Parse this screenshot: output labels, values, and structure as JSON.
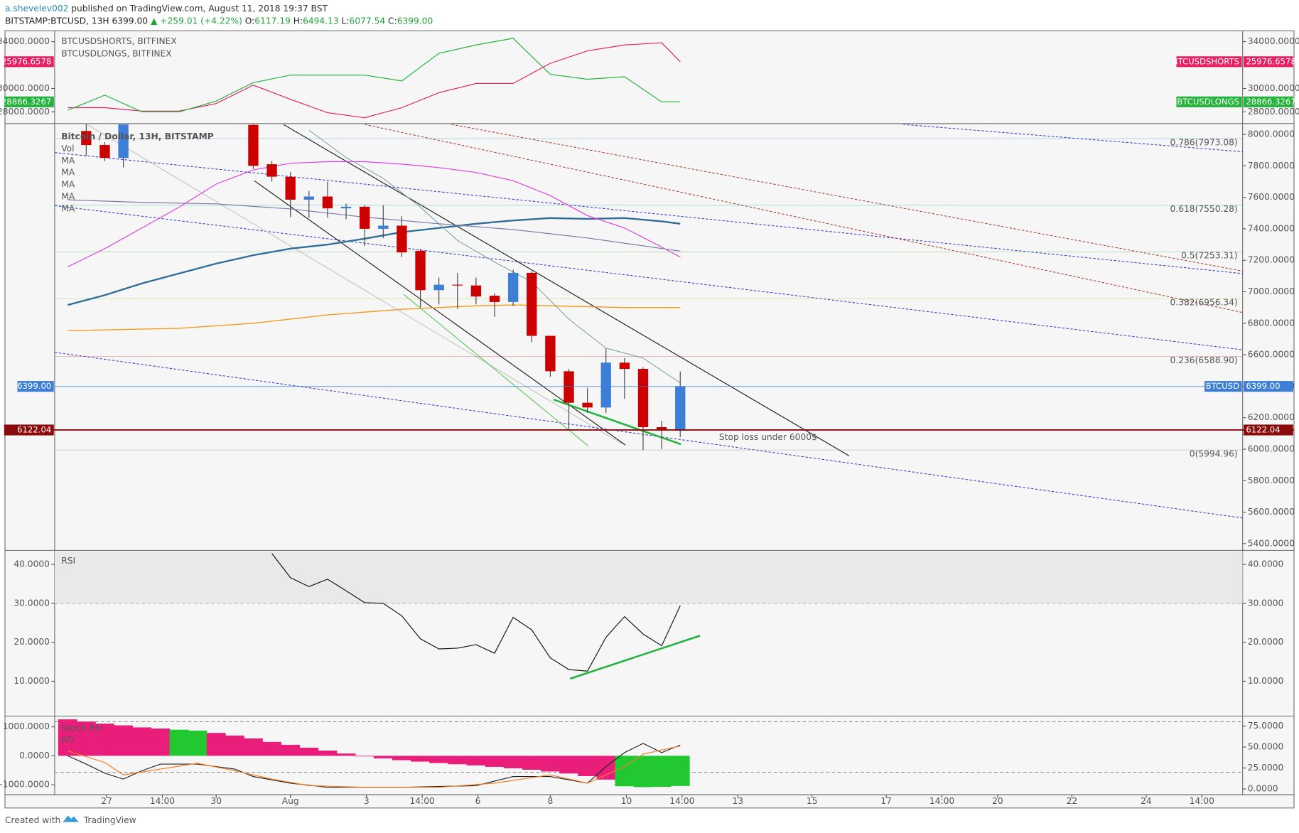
{
  "header": {
    "author": "a.shevelev002",
    "published": "published on TradingView.com, August 11, 2018 19:37 BST",
    "symbol": "BITSTAMP:BTCUSD, 13H",
    "last": "6399.00",
    "change": "▲ +259.01 (+4.22%)",
    "ohlc": [
      {
        "label": "O:",
        "value": "6117.19"
      },
      {
        "label": "H:",
        "value": "6494.13"
      },
      {
        "label": "L:",
        "value": "6077.54"
      },
      {
        "label": "C:",
        "value": "6399.00"
      }
    ]
  },
  "chart_data": [
    {
      "type": "line",
      "ylim": [
        27071,
        34857
      ],
      "yticks": [
        {
          "value": 28000,
          "label": "28000.0000"
        },
        {
          "value": 30000,
          "label": "30000.0000"
        },
        {
          "value": 34000,
          "label": "34000.0000"
        }
      ],
      "series": [
        {
          "name": "BTCUSDSHORTS, BITFINEX",
          "badge_title": "BTCUSDSHORTS",
          "scale_label": "25976.6578",
          "color": "#e91e63",
          "x": [
            -1,
            1,
            3,
            5,
            7,
            9,
            11,
            13,
            15,
            17,
            19,
            21,
            23,
            25,
            27,
            29,
            31,
            32
          ],
          "values": [
            28357,
            28357,
            28071,
            28071,
            28714,
            30286,
            29071,
            27929,
            27500,
            28357,
            29643,
            30429,
            30429,
            32143,
            33214,
            33714,
            33900,
            32286
          ]
        },
        {
          "name": "BTCUSDLONGS, BITFINEX",
          "badge_title": "BTCUSDLONGS",
          "scale_label": "28866.3267",
          "color": "#22b43a",
          "x": [
            -1,
            1,
            3,
            5,
            7,
            9,
            11,
            13,
            15,
            17,
            19,
            21,
            23,
            25,
            27,
            29,
            31,
            32
          ],
          "values": [
            28143,
            29429,
            28000,
            28000,
            28929,
            30500,
            31143,
            31143,
            31143,
            30643,
            33000,
            33714,
            34286,
            31214,
            30786,
            31000,
            28857,
            28857
          ]
        }
      ]
    },
    {
      "type": "candlestick",
      "title": "Bitcoin / Dollar, 13H, BITSTAMP",
      "volume_label": "Vol",
      "xlim": [
        -1.7,
        62.3
      ],
      "xticks": [
        {
          "value": 1.1,
          "label": "27"
        },
        {
          "value": 4.1,
          "label": "14:00"
        },
        {
          "value": 7.0,
          "label": "30"
        },
        {
          "value": 11.0,
          "label": "Aug"
        },
        {
          "value": 15.1,
          "label": "3"
        },
        {
          "value": 18.1,
          "label": "14:00"
        },
        {
          "value": 21.1,
          "label": "6"
        },
        {
          "value": 25.0,
          "label": "8"
        },
        {
          "value": 29.1,
          "label": "10"
        },
        {
          "value": 32.1,
          "label": "14:00"
        },
        {
          "value": 35.1,
          "label": "13"
        },
        {
          "value": 39.1,
          "label": "15"
        },
        {
          "value": 43.1,
          "label": "17"
        },
        {
          "value": 46.1,
          "label": "14:00"
        },
        {
          "value": 49.1,
          "label": "20"
        },
        {
          "value": 53.1,
          "label": "22"
        },
        {
          "value": 57.1,
          "label": "24"
        },
        {
          "value": 60.1,
          "label": "14:00"
        }
      ],
      "ylim": [
        5363,
        8063
      ],
      "yticks": [
        {
          "value": 5400,
          "label": "5400.0000"
        },
        {
          "value": 5600,
          "label": "5600.0000"
        },
        {
          "value": 5800,
          "label": "5800.0000"
        },
        {
          "value": 6000,
          "label": "6000.0000"
        },
        {
          "value": 6200,
          "label": "6200.0000"
        },
        {
          "value": 6400,
          "label": "6400.0000"
        },
        {
          "value": 6600,
          "label": "6600.0000"
        },
        {
          "value": 6800,
          "label": "6800.0000"
        },
        {
          "value": 7000,
          "label": "7000.0000"
        },
        {
          "value": 7200,
          "label": "7200.0000"
        },
        {
          "value": 7400,
          "label": "7400.0000"
        },
        {
          "value": 7600,
          "label": "7600.0000"
        },
        {
          "value": 7800,
          "label": "7800.0000"
        },
        {
          "value": 8000,
          "label": "8000.0000"
        }
      ],
      "candles": {
        "up_color": "#3d7fd6",
        "down_color": "#cc0000",
        "x": [
          0,
          1,
          2,
          9,
          10,
          11,
          12,
          13,
          14,
          15,
          16,
          17,
          18,
          19,
          20,
          21,
          22,
          23,
          24,
          25,
          26,
          27,
          28,
          29,
          30,
          31,
          32
        ],
        "open": [
          8021,
          7932,
          7850,
          8060,
          7810,
          7730,
          7585,
          7605,
          7530,
          7540,
          7400,
          7420,
          7260,
          7010,
          7045,
          7040,
          6975,
          6935,
          7120,
          6720,
          6495,
          6295,
          6265,
          6550,
          6510,
          6140,
          6117.19
        ],
        "high": [
          8100,
          7950,
          8150,
          8100,
          7830,
          7760,
          7640,
          7700,
          7560,
          7550,
          7550,
          7480,
          7270,
          7090,
          7120,
          7090,
          6990,
          7140,
          7130,
          6720,
          6510,
          6390,
          6640,
          6580,
          6520,
          6180,
          6494.13
        ],
        "low": [
          7863,
          7830,
          7790,
          7780,
          7700,
          7474,
          7470,
          7470,
          7460,
          7290,
          7340,
          7220,
          6900,
          6920,
          6890,
          6920,
          6840,
          6910,
          6680,
          6460,
          6120,
          6230,
          6230,
          6320,
          5995,
          6000,
          6077.54
        ],
        "close": [
          7932,
          7850,
          8120,
          7800,
          7731,
          7585,
          7605,
          7530,
          7540,
          7400,
          7420,
          7250,
          7010,
          7045,
          7040,
          6970,
          6935,
          7120,
          6720,
          6495,
          6295,
          6265,
          6550,
          6510,
          6140,
          6120,
          6399
        ]
      },
      "series": [
        {
          "name": "MA",
          "color": "#2e6e96",
          "width": 2,
          "x": [
            -1,
            1,
            3,
            5,
            7,
            9,
            11,
            13,
            15,
            17,
            19,
            21,
            23,
            25,
            27,
            29,
            31,
            32
          ],
          "values": [
            6916,
            6979,
            7053,
            7116,
            7179,
            7232,
            7274,
            7300,
            7337,
            7379,
            7405,
            7432,
            7453,
            7468,
            7463,
            7468,
            7447,
            7432
          ]
        },
        {
          "name": "MA",
          "color": "#f59b1c",
          "width": 1.2,
          "x": [
            -1,
            5,
            9,
            13,
            17,
            21,
            23,
            25,
            29,
            32
          ],
          "values": [
            6753,
            6768,
            6800,
            6853,
            6889,
            6911,
            6916,
            6911,
            6900,
            6900
          ]
        },
        {
          "name": "MA",
          "color": "#e040e0",
          "width": 1,
          "x": [
            -1,
            1,
            3,
            5,
            7,
            9,
            11,
            13,
            15,
            17,
            19,
            21,
            23,
            25,
            27,
            29,
            31,
            32
          ],
          "values": [
            7158,
            7274,
            7405,
            7537,
            7684,
            7774,
            7816,
            7826,
            7826,
            7811,
            7789,
            7758,
            7705,
            7611,
            7484,
            7405,
            7284,
            7221
          ]
        },
        {
          "name": "MA",
          "color": "#7a7aa8",
          "width": 1,
          "x": [
            -1,
            3,
            7,
            11,
            15,
            19,
            23,
            27,
            32
          ],
          "values": [
            7584,
            7568,
            7558,
            7526,
            7474,
            7432,
            7395,
            7342,
            7258
          ]
        },
        {
          "name": "MA",
          "color": "#6a9a9a",
          "width": 0.8,
          "x": [
            12,
            14,
            16,
            18,
            20,
            22,
            24,
            26,
            28,
            30,
            32
          ],
          "values": [
            8026,
            7853,
            7721,
            7537,
            7326,
            7189,
            7063,
            6826,
            6642,
            6579,
            6421
          ]
        }
      ],
      "fib_levels": [
        {
          "label": "0.786(7973.08)",
          "value": 7973.08,
          "color": "#2a8ab8"
        },
        {
          "label": "0.618(7550.28)",
          "value": 7550.28,
          "color": "#26a68a"
        },
        {
          "label": "0.5(7253.31)",
          "value": 7253.31,
          "color": "#4caf50"
        },
        {
          "label": "0.382(6956.34)",
          "value": 6956.34,
          "color": "#9bc21c"
        },
        {
          "label": "0.236(6588.90)",
          "value": 6588.9,
          "color": "#d32f2f"
        },
        {
          "label": "0(5994.96)",
          "value": 5994.96,
          "color": "#888888"
        }
      ],
      "price_line": {
        "name": "BTCUSD",
        "value": 6399,
        "label": "6399.00",
        "color": "#3d7fd6"
      },
      "stop_line": {
        "value": 6122.04,
        "label": "6122.04",
        "color": "#8b0a0a",
        "annotation": "Stop loss under 6000$",
        "annotation_color": "#e91e63"
      }
    },
    {
      "type": "line",
      "title": "RSI",
      "ylim": [
        1.28,
        43.4
      ],
      "reference_line": 30,
      "yticks": [
        {
          "value": 10,
          "label": "10.0000"
        },
        {
          "value": 20,
          "label": "20.0000"
        },
        {
          "value": 30,
          "label": "30.0000"
        },
        {
          "value": 40,
          "label": "40.0000"
        }
      ],
      "series": [
        {
          "color": "#111111",
          "x": [
            10,
            11,
            12,
            13,
            14,
            15,
            16,
            17,
            18,
            19,
            20,
            21,
            22,
            23,
            24,
            25,
            26,
            27,
            28,
            29,
            30,
            31,
            32
          ],
          "values": [
            42.8,
            36.6,
            34.3,
            36.2,
            33.2,
            30.2,
            30.0,
            26.8,
            20.9,
            18.3,
            18.5,
            19.4,
            17.2,
            26.4,
            23.2,
            16.0,
            13.0,
            12.6,
            21.3,
            26.6,
            22.1,
            19.1,
            29.4
          ]
        }
      ]
    },
    {
      "type": "bar",
      "ylim": [
        -1314,
        1343
      ],
      "y2lim": [
        -5.9,
        85.9
      ],
      "y2_reference_lines": [
        80,
        20
      ],
      "yticks": [
        {
          "value": -1000,
          "label": "-1000.0000"
        },
        {
          "value": 0,
          "label": "0.0000"
        },
        {
          "value": 1000,
          "label": "1000.0000"
        }
      ],
      "y2ticks": [
        {
          "value": 0,
          "label": "0.0000"
        },
        {
          "value": 25,
          "label": "25.0000"
        },
        {
          "value": 50,
          "label": "50.0000"
        },
        {
          "value": 75,
          "label": "75.0000"
        }
      ],
      "series": [
        {
          "name": "Stoch RSI",
          "axis": "y2",
          "color": "#222222",
          "x": [
            -1,
            0,
            1,
            2,
            3,
            4,
            6,
            8,
            9,
            11,
            13,
            15,
            17,
            19,
            21,
            23,
            25,
            27,
            28,
            29,
            30,
            31,
            32
          ],
          "values": [
            39.5,
            29.6,
            18.8,
            11.8,
            21.7,
            29.6,
            29.6,
            23.7,
            14.8,
            6.9,
            2,
            2,
            2,
            3,
            4,
            14.8,
            14.8,
            6.9,
            26.7,
            43.4,
            54.3,
            43.4,
            52.3
          ]
        },
        {
          "axis": "y2",
          "color": "#f57c20",
          "x": [
            -1,
            1,
            2,
            4,
            6,
            8,
            10,
            12,
            15,
            19,
            22,
            25,
            27,
            29,
            30,
            31,
            32
          ],
          "values": [
            45.4,
            31.6,
            16.8,
            23.7,
            30.6,
            21.7,
            11.8,
            4,
            2,
            2,
            6.9,
            16.8,
            6.9,
            26.7,
            41.5,
            46.4,
            51.3
          ]
        },
        {
          "name": "AO",
          "type": "bar",
          "x": [
            -1,
            0,
            1,
            2,
            3,
            4,
            5,
            6,
            7,
            8,
            9,
            10,
            11,
            12,
            13,
            14,
            15,
            16,
            17,
            18,
            19,
            20,
            21,
            22,
            23,
            24,
            25,
            26,
            27,
            28,
            29,
            30,
            31,
            32
          ],
          "values": [
            1257,
            1180,
            1110,
            1050,
            980,
            940,
            900,
            870,
            790,
            700,
            600,
            480,
            380,
            280,
            180,
            80,
            -20,
            -90,
            -150,
            -200,
            -250,
            -290,
            -330,
            -380,
            -430,
            -480,
            -540,
            -610,
            -700,
            -820,
            -1050,
            -1080,
            -1070,
            -1040
          ],
          "colors": [
            "#e91e7a",
            "#e91e7a",
            "#e91e7a",
            "#e91e7a",
            "#e91e7a",
            "#e91e7a",
            "#22c832",
            "#22c832",
            "#e91e7a",
            "#e91e7a",
            "#e91e7a",
            "#e91e7a",
            "#e91e7a",
            "#e91e7a",
            "#e91e7a",
            "#e91e7a",
            "#e91e7a",
            "#e91e7a",
            "#e91e7a",
            "#e91e7a",
            "#e91e7a",
            "#e91e7a",
            "#e91e7a",
            "#e91e7a",
            "#e91e7a",
            "#e91e7a",
            "#e91e7a",
            "#e91e7a",
            "#e91e7a",
            "#e91e7a",
            "#22c832",
            "#22c832",
            "#22c832",
            "#22c832"
          ]
        }
      ]
    }
  ],
  "footer": {
    "created": "Created with",
    "brand": "TradingView"
  }
}
